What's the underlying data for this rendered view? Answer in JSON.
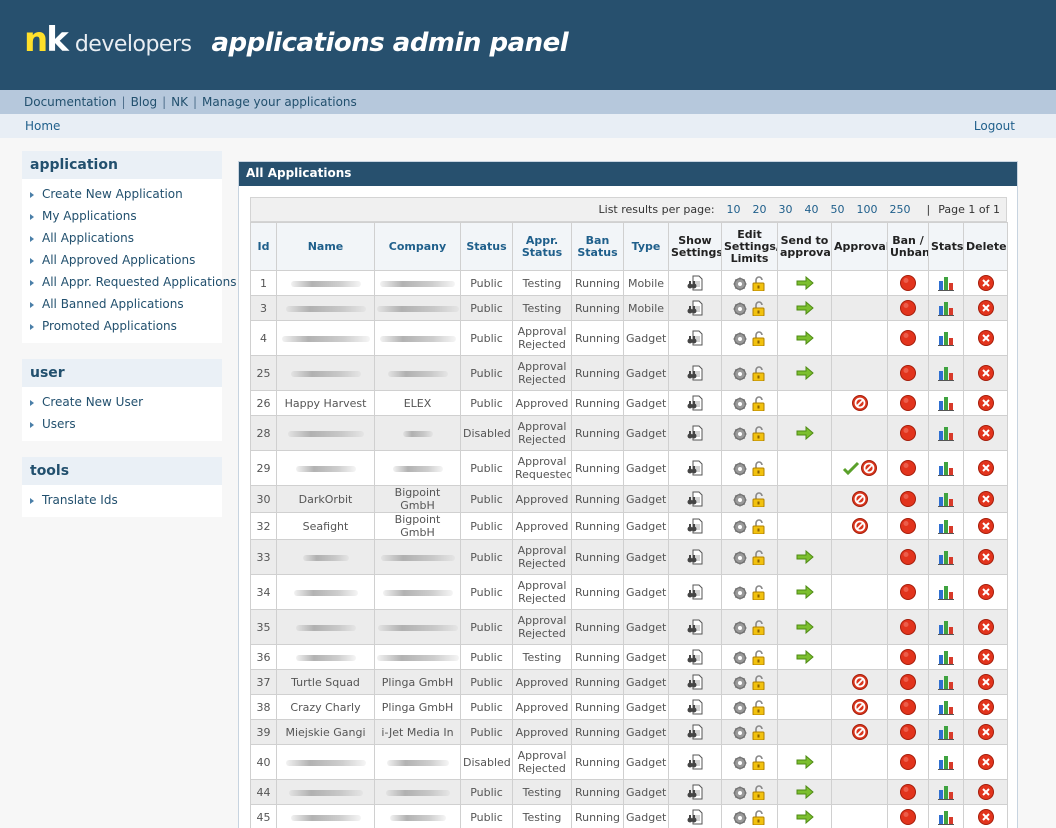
{
  "header": {
    "logo_nk": "n",
    "logo_k": "k",
    "logo_dev": "developers",
    "panel_title": "applications admin panel"
  },
  "links": [
    "Documentation",
    "Blog",
    "NK",
    "Manage your applications"
  ],
  "nav": {
    "home": "Home",
    "logout": "Logout"
  },
  "sidebar": [
    {
      "title": "application",
      "items": [
        "Create New Application",
        "My Applications",
        "All Applications",
        "All Approved Applications",
        "All Appr. Requested Applications",
        "All Banned Applications",
        "Promoted Applications"
      ]
    },
    {
      "title": "user",
      "items": [
        "Create New User",
        "Users"
      ]
    },
    {
      "title": "tools",
      "items": [
        "Translate Ids"
      ]
    }
  ],
  "main": {
    "title": "All Applications",
    "pager": {
      "label": "List results per page:",
      "options": [
        "10",
        "20",
        "30",
        "40",
        "50",
        "100",
        "250"
      ],
      "page_info": "Page 1 of 1"
    },
    "columns": [
      "Id",
      "Name",
      "Company",
      "Status",
      "Appr. Status",
      "Ban Status",
      "Type",
      "Show Settings",
      "Edit Settings/ Limits",
      "Send to approval",
      "Approval",
      "Ban / Unban",
      "Stats",
      "Delete"
    ],
    "rows": [
      {
        "id": "1",
        "name": "",
        "company": "",
        "status": "Public",
        "appr": "Testing",
        "ban": "Running",
        "type": "Mobile",
        "send": true,
        "approval": ""
      },
      {
        "id": "3",
        "name": "",
        "company": "",
        "status": "Public",
        "appr": "Testing",
        "ban": "Running",
        "type": "Mobile",
        "send": true,
        "approval": ""
      },
      {
        "id": "4",
        "name": "",
        "company": "",
        "status": "Public",
        "appr": "Approval Rejected",
        "ban": "Running",
        "type": "Gadget",
        "send": true,
        "approval": ""
      },
      {
        "id": "25",
        "name": "",
        "company": "",
        "status": "Public",
        "appr": "Approval Rejected",
        "ban": "Running",
        "type": "Gadget",
        "send": true,
        "approval": ""
      },
      {
        "id": "26",
        "name": "Happy Harvest",
        "company": "ELEX",
        "status": "Public",
        "appr": "Approved",
        "ban": "Running",
        "type": "Gadget",
        "send": false,
        "approval": "revoke"
      },
      {
        "id": "28",
        "name": "",
        "company": "",
        "status": "Disabled",
        "appr": "Approval Rejected",
        "ban": "Running",
        "type": "Gadget",
        "send": true,
        "approval": ""
      },
      {
        "id": "29",
        "name": "",
        "company": "",
        "status": "Public",
        "appr": "Approval Requested",
        "ban": "Running",
        "type": "Gadget",
        "send": false,
        "approval": "both"
      },
      {
        "id": "30",
        "name": "DarkOrbit",
        "company": "Bigpoint GmbH",
        "status": "Public",
        "appr": "Approved",
        "ban": "Running",
        "type": "Gadget",
        "send": false,
        "approval": "revoke"
      },
      {
        "id": "32",
        "name": "Seafight",
        "company": "Bigpoint GmbH",
        "status": "Public",
        "appr": "Approved",
        "ban": "Running",
        "type": "Gadget",
        "send": false,
        "approval": "revoke"
      },
      {
        "id": "33",
        "name": "",
        "company": "",
        "status": "Public",
        "appr": "Approval Rejected",
        "ban": "Running",
        "type": "Gadget",
        "send": true,
        "approval": ""
      },
      {
        "id": "34",
        "name": "",
        "company": "",
        "status": "Public",
        "appr": "Approval Rejected",
        "ban": "Running",
        "type": "Gadget",
        "send": true,
        "approval": ""
      },
      {
        "id": "35",
        "name": "",
        "company": "",
        "status": "Public",
        "appr": "Approval Rejected",
        "ban": "Running",
        "type": "Gadget",
        "send": true,
        "approval": ""
      },
      {
        "id": "36",
        "name": "",
        "company": "",
        "status": "Public",
        "appr": "Testing",
        "ban": "Running",
        "type": "Gadget",
        "send": true,
        "approval": ""
      },
      {
        "id": "37",
        "name": "Turtle Squad",
        "company": "Plinga GmbH",
        "status": "Public",
        "appr": "Approved",
        "ban": "Running",
        "type": "Gadget",
        "send": false,
        "approval": "revoke"
      },
      {
        "id": "38",
        "name": "Crazy Charly",
        "company": "Plinga GmbH",
        "status": "Public",
        "appr": "Approved",
        "ban": "Running",
        "type": "Gadget",
        "send": false,
        "approval": "revoke"
      },
      {
        "id": "39",
        "name": "Miejskie Gangi",
        "company": "i-Jet Media In",
        "status": "Public",
        "appr": "Approved",
        "ban": "Running",
        "type": "Gadget",
        "send": false,
        "approval": "revoke"
      },
      {
        "id": "40",
        "name": "",
        "company": "",
        "status": "Disabled",
        "appr": "Approval Rejected",
        "ban": "Running",
        "type": "Gadget",
        "send": true,
        "approval": ""
      },
      {
        "id": "44",
        "name": "",
        "company": "",
        "status": "Public",
        "appr": "Testing",
        "ban": "Running",
        "type": "Gadget",
        "send": true,
        "approval": ""
      },
      {
        "id": "45",
        "name": "",
        "company": "",
        "status": "Public",
        "appr": "Testing",
        "ban": "Running",
        "type": "Gadget",
        "send": true,
        "approval": ""
      }
    ]
  },
  "icons": {
    "show_settings": "binoculars-document-icon",
    "edit_settings": "gear-lock-icon",
    "send_to_approval": "green-arrow-icon",
    "approve": "green-check-icon",
    "revoke": "red-no-icon",
    "ban": "red-circle-icon",
    "stats": "bar-chart-icon",
    "delete": "red-x-icon"
  }
}
